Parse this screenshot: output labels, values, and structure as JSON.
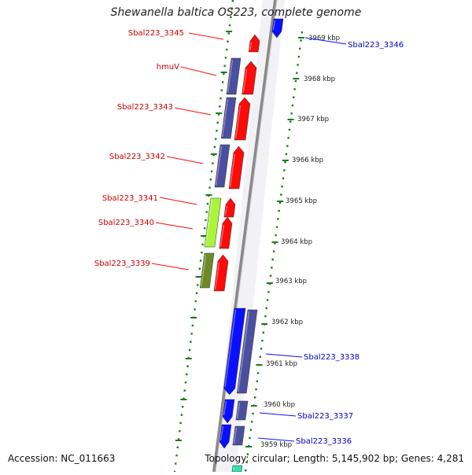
{
  "title": "Shewanella baltica OS223, complete genome",
  "footer": {
    "accession": "Accession: NC_011663",
    "summary": "Topology: circular; Length: 5,145,902 bp; Genes: 4,281"
  },
  "colors": {
    "navy": "#4b4fa0",
    "blue": "#0a10ff",
    "red": "#ff0a0a",
    "lime": "#a8f53a",
    "olive": "#6e8a26",
    "teal": "#30e0b0",
    "backbone": "#8a8a8a",
    "dots": "#1f7a1f"
  },
  "kbp_labels": [
    "3969 kbp",
    "3968 kbp",
    "3967 kbp",
    "3966 kbp",
    "3965 kbp",
    "3964 kbp",
    "3963 kbp",
    "3962 kbp",
    "3961 kbp",
    "3960 kbp",
    "3959 kbp"
  ],
  "gene_labels_left": [
    "Sbal223_3345",
    "hmuV",
    "Sbal223_3343",
    "Sbal223_3342",
    "Sbal223_3341",
    "Sbal223_3340",
    "Sbal223_3339"
  ],
  "gene_labels_right": [
    "Sbal223_3346",
    "Sbal223_3338",
    "Sbal223_3337",
    "Sbal223_3336"
  ]
}
